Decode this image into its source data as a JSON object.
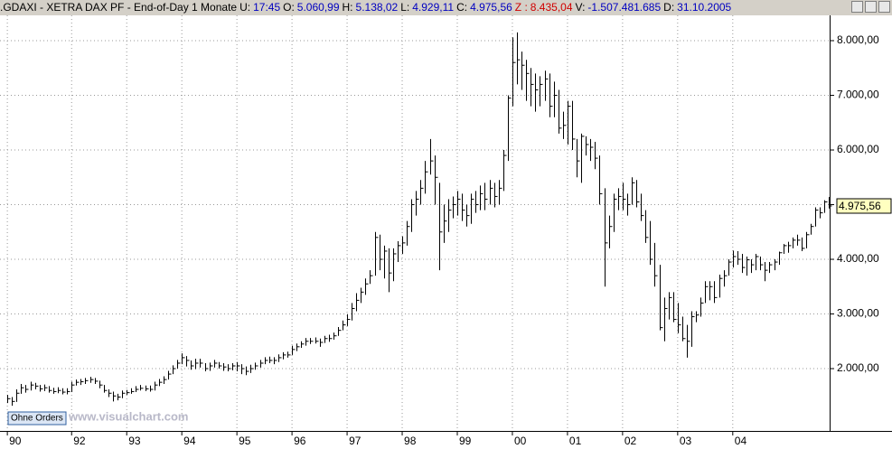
{
  "header": [
    {
      "label": ".GDAXI - XETRA DAX PF - End-of-Day 1 Monate"
    },
    {
      "label": "U:",
      "value": "17:45"
    },
    {
      "label": "O:",
      "value": "5.060,99"
    },
    {
      "label": "H:",
      "value": "5.138,02"
    },
    {
      "label": "L:",
      "value": "4.929,11"
    },
    {
      "label": "C:",
      "value": "4.975,56"
    },
    {
      "label": "Z :",
      "value": "8.435,04"
    },
    {
      "label": "V:",
      "value": "-1.507.481.685"
    },
    {
      "label": "D:",
      "value": "31.10.2005"
    }
  ],
  "button": "Ohne Orders",
  "watermark": "www.visualchart.com",
  "chart_data": {
    "type": "ohlc",
    "color": "#000000",
    "grid": true,
    "xlim": [
      -1.6,
      179.1
    ],
    "ylim": [
      860,
      8463
    ],
    "xticks": [
      {
        "value": 0,
        "label": "90"
      },
      {
        "value": 14,
        "label": "92"
      },
      {
        "value": 26,
        "label": "93"
      },
      {
        "value": 38,
        "label": "94"
      },
      {
        "value": 50,
        "label": "95"
      },
      {
        "value": 62,
        "label": "96"
      },
      {
        "value": 74,
        "label": "97"
      },
      {
        "value": 86,
        "label": "98"
      },
      {
        "value": 98,
        "label": "99"
      },
      {
        "value": 110,
        "label": "00"
      },
      {
        "value": 122,
        "label": "01"
      },
      {
        "value": 134,
        "label": "02"
      },
      {
        "value": 146,
        "label": "03"
      },
      {
        "value": 158,
        "label": "04"
      }
    ],
    "yticks": [
      {
        "value": 2000,
        "label": "2.000,00"
      },
      {
        "value": 3000,
        "label": "3.000,00"
      },
      {
        "value": 4000,
        "label": "4.000,00"
      },
      {
        "value": 5000,
        "label": "5.000,00"
      },
      {
        "value": 6000,
        "label": "6.000,00"
      },
      {
        "value": 7000,
        "label": "7.000,00"
      },
      {
        "value": 8000,
        "label": "8.000,00"
      }
    ],
    "last": {
      "value": 4975.56,
      "label": "4.975,56"
    },
    "high": [
      1520,
      1480,
      1620,
      1720,
      1700,
      1760,
      1740,
      1700,
      1710,
      1680,
      1650,
      1660,
      1640,
      1640,
      1760,
      1800,
      1810,
      1830,
      1850,
      1830,
      1780,
      1700,
      1620,
      1580,
      1540,
      1600,
      1610,
      1640,
      1680,
      1700,
      1690,
      1690,
      1760,
      1810,
      1860,
      1960,
      2060,
      2160,
      2280,
      2230,
      2150,
      2180,
      2180,
      2100,
      2110,
      2160,
      2120,
      2100,
      2080,
      2100,
      2120,
      2080,
      2040,
      2070,
      2110,
      2160,
      2210,
      2220,
      2210,
      2260,
      2300,
      2310,
      2420,
      2460,
      2500,
      2560,
      2560,
      2570,
      2550,
      2600,
      2620,
      2660,
      2760,
      2880,
      2990,
      3200,
      3380,
      3480,
      3650,
      3800,
      4500,
      4450,
      4250,
      4200,
      4200,
      4330,
      4420,
      4700,
      5100,
      5250,
      5450,
      5800,
      6200,
      5900,
      5400,
      5000,
      5100,
      5150,
      5250,
      5200,
      5000,
      5200,
      5250,
      5350,
      5400,
      5450,
      5400,
      5450,
      6000,
      7000,
      8060,
      8150,
      7800,
      7650,
      7500,
      7400,
      7350,
      7450,
      7400,
      7250,
      7100,
      6700,
      6900,
      6900,
      6200,
      6300,
      6250,
      6200,
      6150,
      5900,
      5300,
      4800,
      5200,
      5300,
      5400,
      5200,
      5500,
      5450,
      5200,
      4900,
      4700,
      4300,
      3900,
      3300,
      3400,
      3400,
      3200,
      2950,
      2800,
      3050,
      3050,
      3300,
      3600,
      3600,
      3600,
      3720,
      3800,
      4000,
      4160,
      4150,
      4100,
      4050,
      4000,
      4100,
      4050,
      3950,
      3950,
      4000,
      4140,
      4280,
      4320,
      4400,
      4450,
      4400,
      4500,
      4650,
      4950,
      4950,
      5080,
      5138.02
    ],
    "low": [
      1370,
      1320,
      1390,
      1540,
      1560,
      1600,
      1620,
      1580,
      1590,
      1560,
      1540,
      1550,
      1530,
      1530,
      1570,
      1690,
      1700,
      1720,
      1740,
      1720,
      1640,
      1560,
      1480,
      1400,
      1420,
      1460,
      1520,
      1540,
      1570,
      1600,
      1590,
      1580,
      1600,
      1680,
      1720,
      1800,
      1900,
      2000,
      2080,
      2040,
      1980,
      1990,
      2020,
      1950,
      1960,
      2020,
      2000,
      1960,
      1950,
      1970,
      1950,
      1900,
      1880,
      1920,
      1980,
      2020,
      2080,
      2100,
      2080,
      2120,
      2170,
      2200,
      2250,
      2320,
      2380,
      2420,
      2450,
      2460,
      2400,
      2470,
      2490,
      2530,
      2600,
      2700,
      2780,
      2880,
      3050,
      3200,
      3350,
      3550,
      3700,
      3800,
      3650,
      3400,
      3600,
      3950,
      4100,
      4250,
      4500,
      4800,
      5000,
      5200,
      5550,
      5000,
      3800,
      4300,
      4500,
      4750,
      4800,
      4700,
      4600,
      4650,
      4850,
      4900,
      4900,
      5000,
      4950,
      5000,
      5250,
      5800,
      6800,
      7200,
      7100,
      6900,
      6800,
      6700,
      6800,
      6900,
      6600,
      6600,
      6300,
      6200,
      6100,
      6000,
      5500,
      5400,
      5900,
      5800,
      5650,
      5000,
      3500,
      4200,
      4500,
      4900,
      4900,
      4800,
      5000,
      4950,
      4700,
      4300,
      3900,
      3500,
      2700,
      2500,
      2900,
      2850,
      2650,
      2500,
      2200,
      2400,
      2850,
      2950,
      3200,
      3250,
      3200,
      3300,
      3500,
      3700,
      3850,
      3900,
      3750,
      3700,
      3750,
      3800,
      3800,
      3600,
      3750,
      3800,
      3900,
      4100,
      4120,
      4200,
      4250,
      4150,
      4200,
      4450,
      4600,
      4750,
      4850,
      4929.11
    ],
    "close": [
      1450,
      1400,
      1550,
      1650,
      1620,
      1700,
      1680,
      1630,
      1650,
      1600,
      1580,
      1600,
      1570,
      1580,
      1700,
      1750,
      1760,
      1780,
      1800,
      1770,
      1700,
      1600,
      1550,
      1500,
      1480,
      1550,
      1560,
      1580,
      1620,
      1640,
      1630,
      1620,
      1700,
      1750,
      1800,
      1900,
      2000,
      2100,
      2200,
      2150,
      2050,
      2100,
      2100,
      2000,
      2050,
      2100,
      2050,
      2030,
      2000,
      2050,
      2050,
      2000,
      1950,
      2000,
      2050,
      2100,
      2150,
      2150,
      2150,
      2200,
      2250,
      2250,
      2350,
      2400,
      2450,
      2500,
      2500,
      2500,
      2480,
      2550,
      2550,
      2600,
      2700,
      2800,
      2900,
      3100,
      3250,
      3400,
      3550,
      3700,
      4400,
      4000,
      4150,
      3750,
      4100,
      4250,
      4300,
      4600,
      5000,
      5100,
      5300,
      5600,
      5800,
      5500,
      4500,
      4700,
      4900,
      5000,
      5100,
      4900,
      4800,
      5100,
      5000,
      5200,
      5100,
      5300,
      5150,
      5300,
      5900,
      6950,
      7600,
      7650,
      7550,
      7400,
      7200,
      7100,
      7200,
      7300,
      6800,
      7000,
      6400,
      6450,
      6800,
      6200,
      5800,
      6250,
      6100,
      6050,
      5850,
      5200,
      4300,
      4600,
      5100,
      5150,
      5100,
      5000,
      5400,
      5050,
      4800,
      4400,
      4000,
      3700,
      2750,
      3100,
      3300,
      2900,
      2800,
      2550,
      2500,
      2950,
      2980,
      3200,
      3500,
      3500,
      3300,
      3650,
      3700,
      3950,
      4050,
      4000,
      3850,
      3990,
      3900,
      4050,
      3900,
      3800,
      3900,
      3950,
      4120,
      4250,
      4250,
      4350,
      4350,
      4200,
      4450,
      4600,
      4900,
      4850,
      5050,
      4975.56
    ]
  }
}
